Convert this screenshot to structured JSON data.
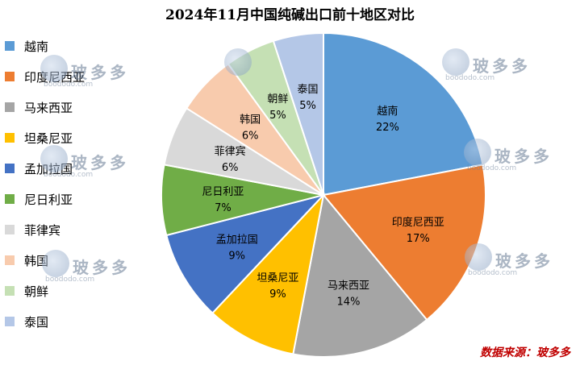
{
  "chart_data": {
    "type": "pie",
    "title": "2024年11月中国纯碱出口前十地区对比",
    "categories": [
      "越南",
      "印度尼西亚",
      "马来西亚",
      "坦桑尼亚",
      "孟加拉国",
      "尼日利亚",
      "菲律宾",
      "韩国",
      "朝鲜",
      "泰国"
    ],
    "values": [
      22,
      17,
      14,
      9,
      9,
      7,
      6,
      6,
      5,
      5
    ],
    "value_labels": [
      "22%",
      "17%",
      "14%",
      "9%",
      "9%",
      "7%",
      "6%",
      "6%",
      "5%",
      "5%"
    ],
    "colors": [
      "#5b9bd5",
      "#ed7d31",
      "#a5a5a5",
      "#ffc000",
      "#4472c4",
      "#70ad47",
      "#d9d9d9",
      "#f8cbad",
      "#c5e0b4",
      "#b4c7e7"
    ],
    "legend_position": "left"
  },
  "watermark": {
    "brand": "玻多多",
    "site": "boododo.com"
  },
  "source": "数据来源：玻多多"
}
